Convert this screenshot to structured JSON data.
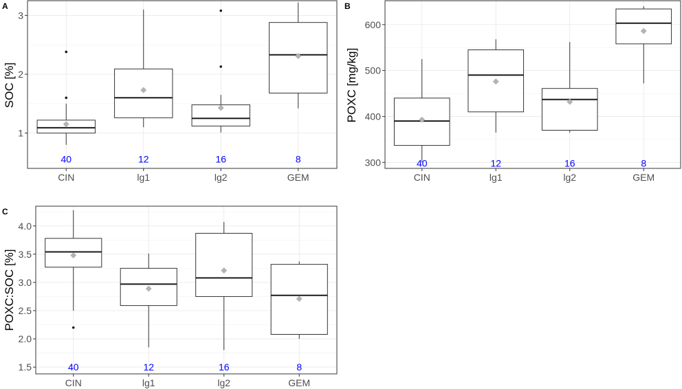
{
  "chart_data": [
    {
      "panel": "A",
      "type": "box",
      "ylabel": "SOC [%]",
      "categories": [
        "CIN",
        "lg1",
        "lg2",
        "GEM"
      ],
      "ylim": [
        0.4,
        3.25
      ],
      "yticks": [
        1,
        2,
        3
      ],
      "grid": true,
      "n_labels": [
        "40",
        "12",
        "16",
        "8"
      ],
      "n_label_y": 0.56,
      "series": [
        {
          "category": "CIN",
          "whisker_low": 0.8,
          "q1": 1.0,
          "median": 1.09,
          "q3": 1.22,
          "whisker_high": 1.5,
          "mean": 1.15,
          "outliers": [
            1.6,
            2.38
          ]
        },
        {
          "category": "lg1",
          "whisker_low": 1.1,
          "q1": 1.26,
          "median": 1.6,
          "q3": 2.09,
          "whisker_high": 3.1,
          "mean": 1.73,
          "outliers": []
        },
        {
          "category": "lg2",
          "whisker_low": 1.01,
          "q1": 1.12,
          "median": 1.25,
          "q3": 1.48,
          "whisker_high": 1.65,
          "mean": 1.43,
          "outliers": [
            2.13,
            3.08
          ]
        },
        {
          "category": "GEM",
          "whisker_low": 1.42,
          "q1": 1.68,
          "median": 2.33,
          "q3": 2.88,
          "whisker_high": 3.22,
          "mean": 2.31,
          "outliers": []
        }
      ]
    },
    {
      "panel": "B",
      "type": "box",
      "ylabel": "POXC [mg/kg]",
      "categories": [
        "CIN",
        "lg1",
        "lg2",
        "GEM"
      ],
      "ylim": [
        287,
        652
      ],
      "yticks": [
        300,
        400,
        500,
        600
      ],
      "grid": true,
      "n_labels": [
        "40",
        "12",
        "16",
        "8"
      ],
      "n_label_y": 298,
      "series": [
        {
          "category": "CIN",
          "whisker_low": 300,
          "q1": 337,
          "median": 390,
          "q3": 440,
          "whisker_high": 525,
          "mean": 393,
          "outliers": []
        },
        {
          "category": "lg1",
          "whisker_low": 365,
          "q1": 410,
          "median": 490,
          "q3": 545,
          "whisker_high": 568,
          "mean": 476,
          "outliers": []
        },
        {
          "category": "lg2",
          "whisker_low": 365,
          "q1": 370,
          "median": 437,
          "q3": 461,
          "whisker_high": 562,
          "mean": 432,
          "outliers": []
        },
        {
          "category": "GEM",
          "whisker_low": 472,
          "q1": 558,
          "median": 603,
          "q3": 634,
          "whisker_high": 640,
          "mean": 586,
          "outliers": []
        }
      ]
    },
    {
      "panel": "C",
      "type": "box",
      "ylabel": "POXC:SOC [%]",
      "categories": [
        "CIN",
        "lg1",
        "lg2",
        "GEM"
      ],
      "ylim": [
        1.38,
        4.35
      ],
      "yticks": [
        1.5,
        2.0,
        2.5,
        3.0,
        3.5,
        4.0
      ],
      "ytick_labels": [
        "1.5",
        "2.0",
        "2.5",
        "3.0",
        "3.5",
        "4.0"
      ],
      "grid": true,
      "n_labels": [
        "40",
        "12",
        "16",
        "8"
      ],
      "n_label_y": 1.5,
      "series": [
        {
          "category": "CIN",
          "whisker_low": 2.5,
          "q1": 3.27,
          "median": 3.54,
          "q3": 3.78,
          "whisker_high": 4.28,
          "mean": 3.48,
          "outliers": [
            2.2
          ]
        },
        {
          "category": "lg1",
          "whisker_low": 1.85,
          "q1": 2.59,
          "median": 2.97,
          "q3": 3.25,
          "whisker_high": 3.51,
          "mean": 2.89,
          "outliers": []
        },
        {
          "category": "lg2",
          "whisker_low": 1.8,
          "q1": 2.75,
          "median": 3.08,
          "q3": 3.87,
          "whisker_high": 4.07,
          "mean": 3.21,
          "outliers": []
        },
        {
          "category": "GEM",
          "whisker_low": 2.0,
          "q1": 2.08,
          "median": 2.77,
          "q3": 3.32,
          "whisker_high": 3.37,
          "mean": 2.71,
          "outliers": []
        }
      ]
    }
  ]
}
